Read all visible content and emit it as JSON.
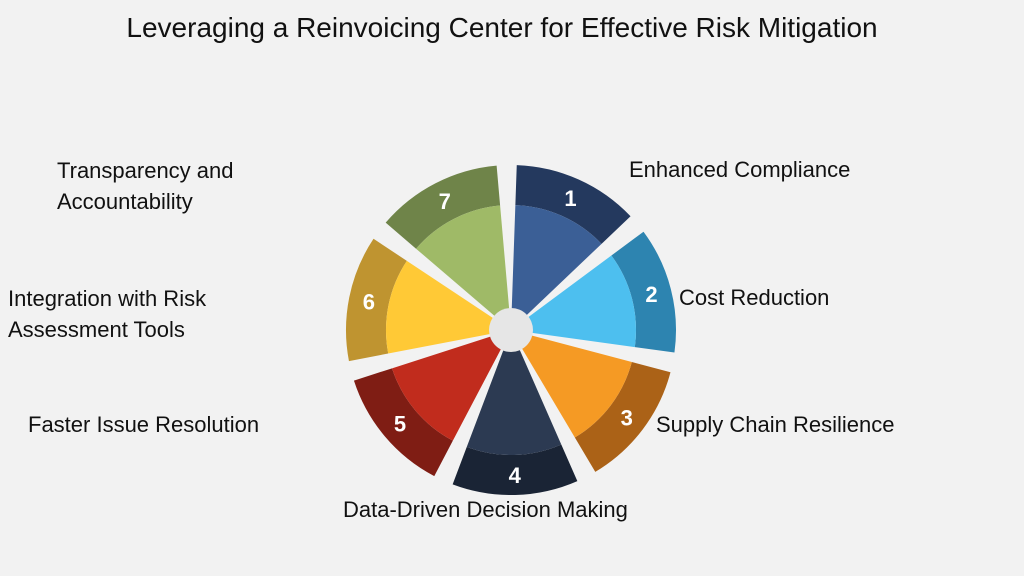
{
  "title": "Leveraging a Reinvoicing Center for Effective Risk Mitigation",
  "segments": [
    {
      "num": "1",
      "label": "Enhanced Compliance",
      "color": "#3b5f96",
      "rim": "#24395e"
    },
    {
      "num": "2",
      "label": "Cost Reduction",
      "color": "#4dbfef",
      "rim": "#2d84b0"
    },
    {
      "num": "3",
      "label": "Supply Chain Resilience",
      "color": "#f59a24",
      "rim": "#ab6217"
    },
    {
      "num": "4",
      "label": "Data-Driven Decision Making",
      "color": "#2c3a52",
      "rim": "#1a2435"
    },
    {
      "num": "5",
      "label": "Faster Issue Resolution",
      "color": "#c12c1d",
      "rim": "#7f1d14"
    },
    {
      "num": "6",
      "label": "Integration with Risk Assessment Tools",
      "color": "#ffc936",
      "rim": "#bf9430"
    },
    {
      "num": "7",
      "label": "Transparency and Accountability",
      "color": "#9fba67",
      "rim": "#6f8449"
    }
  ],
  "label_lines": {
    "l1": [
      "Enhanced Compliance"
    ],
    "l2": [
      "Cost Reduction"
    ],
    "l3": [
      "Supply Chain Resilience"
    ],
    "l4": [
      "Data-Driven Decision Making"
    ],
    "l5": [
      "Faster Issue Resolution"
    ],
    "l6": [
      "Integration with Risk",
      "Assessment Tools"
    ],
    "l7": [
      "Transparency and",
      "Accountability"
    ]
  }
}
